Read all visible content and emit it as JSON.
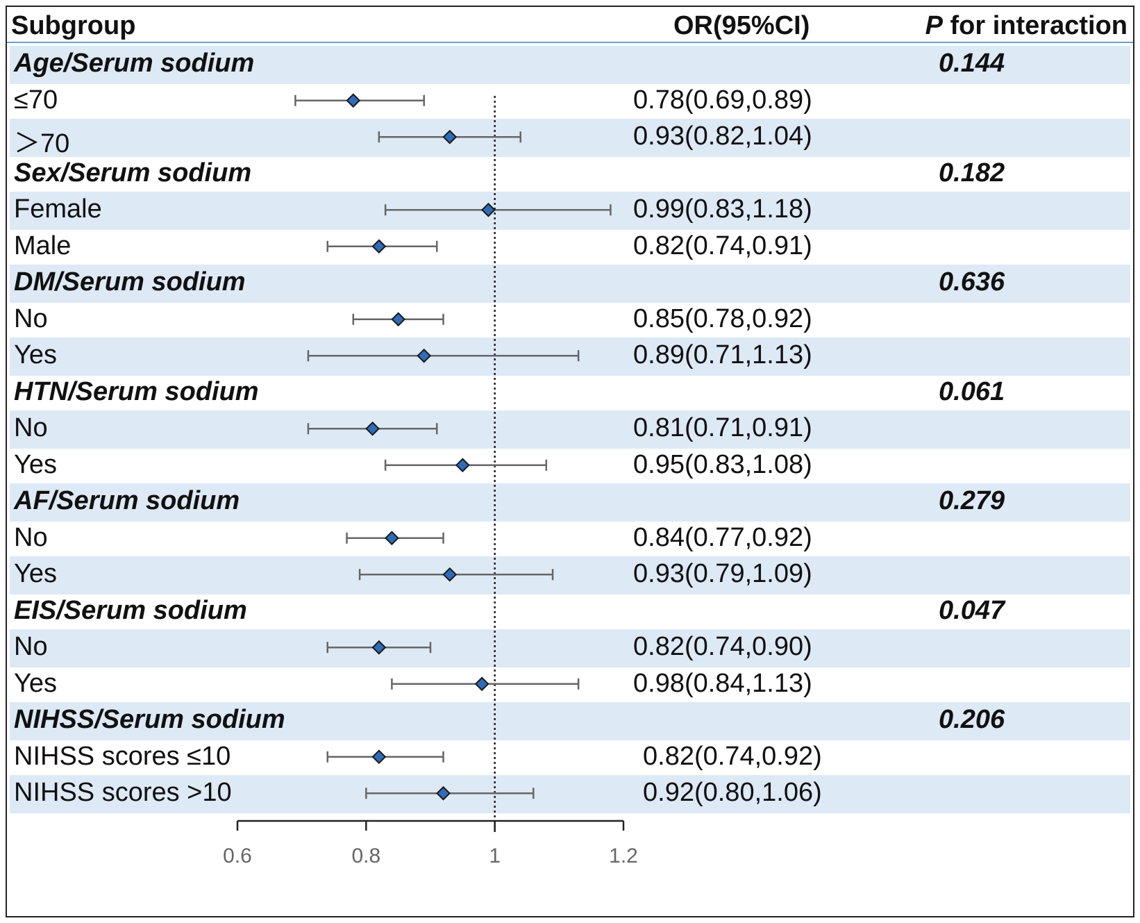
{
  "header": {
    "subgroup": "Subgroup",
    "or": "OR(95%CI)",
    "p_italic": "P",
    "p_rest": " for interaction"
  },
  "rows": [
    {
      "type": "group",
      "label": "Age/Serum sodium",
      "p": "0.144"
    },
    {
      "type": "item",
      "label": "≤70",
      "or_text": "0.78(0.69,0.89)"
    },
    {
      "type": "item",
      "label": "＞70",
      "or_text": "0.93(0.82,1.04)"
    },
    {
      "type": "group",
      "label": "Sex/Serum sodium",
      "p": "0.182"
    },
    {
      "type": "item",
      "label": "Female",
      "or_text": "0.99(0.83,1.18)"
    },
    {
      "type": "item",
      "label": "Male",
      "or_text": "0.82(0.74,0.91)"
    },
    {
      "type": "group",
      "label": "DM/Serum sodium",
      "p": "0.636"
    },
    {
      "type": "item",
      "label": "No",
      "or_text": "0.85(0.78,0.92)"
    },
    {
      "type": "item",
      "label": "Yes",
      "or_text": "0.89(0.71,1.13)"
    },
    {
      "type": "group",
      "label": "HTN/Serum sodium",
      "p": "0.061"
    },
    {
      "type": "item",
      "label": "No",
      "or_text": "0.81(0.71,0.91)"
    },
    {
      "type": "item",
      "label": "Yes",
      "or_text": "0.95(0.83,1.08)"
    },
    {
      "type": "group",
      "label": "AF/Serum sodium",
      "p": "0.279"
    },
    {
      "type": "item",
      "label": "No",
      "or_text": "0.84(0.77,0.92)"
    },
    {
      "type": "item",
      "label": "Yes",
      "or_text": "0.93(0.79,1.09)"
    },
    {
      "type": "group",
      "label": "EIS/Serum sodium",
      "p": "0.047"
    },
    {
      "type": "item",
      "label": "No",
      "or_text": "0.82(0.74,0.90)"
    },
    {
      "type": "item",
      "label": "Yes",
      "or_text": "0.98(0.84,1.13)"
    },
    {
      "type": "group",
      "label": "NIHSS/Serum sodium",
      "p": "0.206"
    },
    {
      "type": "item",
      "label": "NIHSS scores ≤10",
      "or_text": "0.82(0.74,0.92)"
    },
    {
      "type": "item",
      "label": "NIHSS scores >10",
      "or_text": "0.92(0.80,1.06)"
    }
  ],
  "chart_data": {
    "type": "forest",
    "title": "",
    "xlabel": "",
    "xlim": [
      0.6,
      1.2
    ],
    "xticks": [
      0.6,
      0.8,
      1,
      1.2
    ],
    "reference_line": 1,
    "colors": {
      "marker": "#2e6bb8",
      "whisker": "#666666",
      "shade": "#dde9f5"
    },
    "estimates": [
      {
        "label": "≤70",
        "group": "Age/Serum sodium",
        "or": 0.78,
        "lo": 0.69,
        "hi": 0.89
      },
      {
        "label": "＞70",
        "group": "Age/Serum sodium",
        "or": 0.93,
        "lo": 0.82,
        "hi": 1.04
      },
      {
        "label": "Female",
        "group": "Sex/Serum sodium",
        "or": 0.99,
        "lo": 0.83,
        "hi": 1.18
      },
      {
        "label": "Male",
        "group": "Sex/Serum sodium",
        "or": 0.82,
        "lo": 0.74,
        "hi": 0.91
      },
      {
        "label": "No",
        "group": "DM/Serum sodium",
        "or": 0.85,
        "lo": 0.78,
        "hi": 0.92
      },
      {
        "label": "Yes",
        "group": "DM/Serum sodium",
        "or": 0.89,
        "lo": 0.71,
        "hi": 1.13
      },
      {
        "label": "No",
        "group": "HTN/Serum sodium",
        "or": 0.81,
        "lo": 0.71,
        "hi": 0.91
      },
      {
        "label": "Yes",
        "group": "HTN/Serum sodium",
        "or": 0.95,
        "lo": 0.83,
        "hi": 1.08
      },
      {
        "label": "No",
        "group": "AF/Serum sodium",
        "or": 0.84,
        "lo": 0.77,
        "hi": 0.92
      },
      {
        "label": "Yes",
        "group": "AF/Serum sodium",
        "or": 0.93,
        "lo": 0.79,
        "hi": 1.09
      },
      {
        "label": "No",
        "group": "EIS/Serum sodium",
        "or": 0.82,
        "lo": 0.74,
        "hi": 0.9
      },
      {
        "label": "Yes",
        "group": "EIS/Serum sodium",
        "or": 0.98,
        "lo": 0.84,
        "hi": 1.13
      },
      {
        "label": "NIHSS scores ≤10",
        "group": "NIHSS/Serum sodium",
        "or": 0.82,
        "lo": 0.74,
        "hi": 0.92
      },
      {
        "label": "NIHSS scores >10",
        "group": "NIHSS/Serum sodium",
        "or": 0.92,
        "lo": 0.8,
        "hi": 1.06
      }
    ]
  }
}
